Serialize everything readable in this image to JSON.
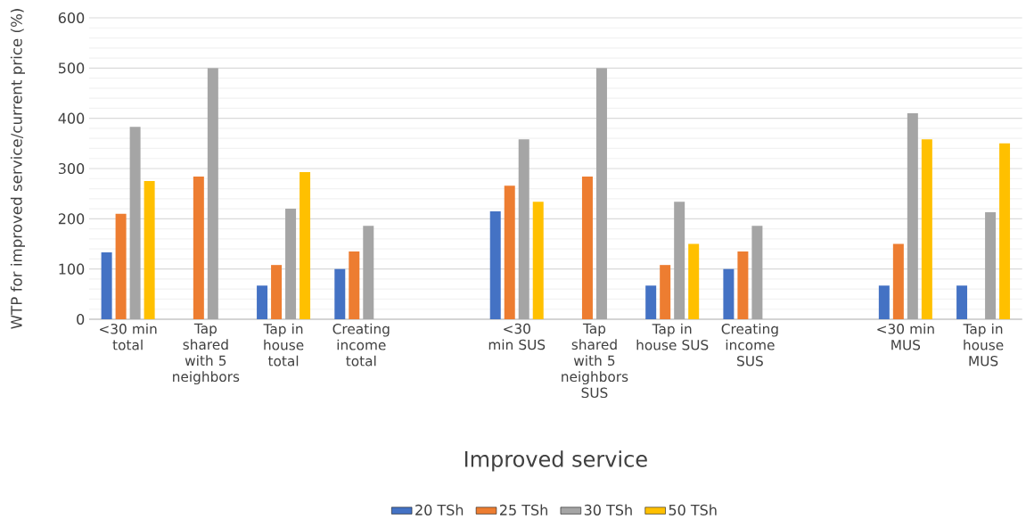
{
  "chart_data": {
    "type": "bar",
    "xlabel": "Improved service",
    "ylabel": "WTP for improved service/current price (%)",
    "categories": [
      "<30 min total",
      "Tap shared with 5 neighbors",
      "Tap in house total",
      "Creating income total",
      null,
      "<30 min SUS",
      "Tap shared with 5 neighbors SUS",
      "Tap in house SUS",
      "Creating income SUS",
      null,
      "<30 min MUS",
      "Tap in house MUS"
    ],
    "series": [
      {
        "name": "20 TSh",
        "color": "#4472c4",
        "values": [
          133,
          null,
          67,
          100,
          null,
          215,
          null,
          67,
          100,
          null,
          67,
          67
        ]
      },
      {
        "name": "25 TSh",
        "color": "#ed7d31",
        "values": [
          210,
          284,
          108,
          135,
          null,
          266,
          284,
          108,
          135,
          null,
          150,
          null
        ]
      },
      {
        "name": "30 TSh",
        "color": "#a5a5a5",
        "values": [
          383,
          500,
          220,
          186,
          null,
          358,
          500,
          234,
          186,
          null,
          410,
          213
        ]
      },
      {
        "name": "50 TSh",
        "color": "#ffc000",
        "values": [
          275,
          null,
          293,
          null,
          null,
          234,
          null,
          150,
          null,
          null,
          358,
          350
        ]
      }
    ],
    "ylim": [
      0,
      600
    ],
    "yticks": [
      0,
      100,
      200,
      300,
      400,
      500,
      600
    ],
    "grid": "y",
    "legend": "bottom"
  }
}
